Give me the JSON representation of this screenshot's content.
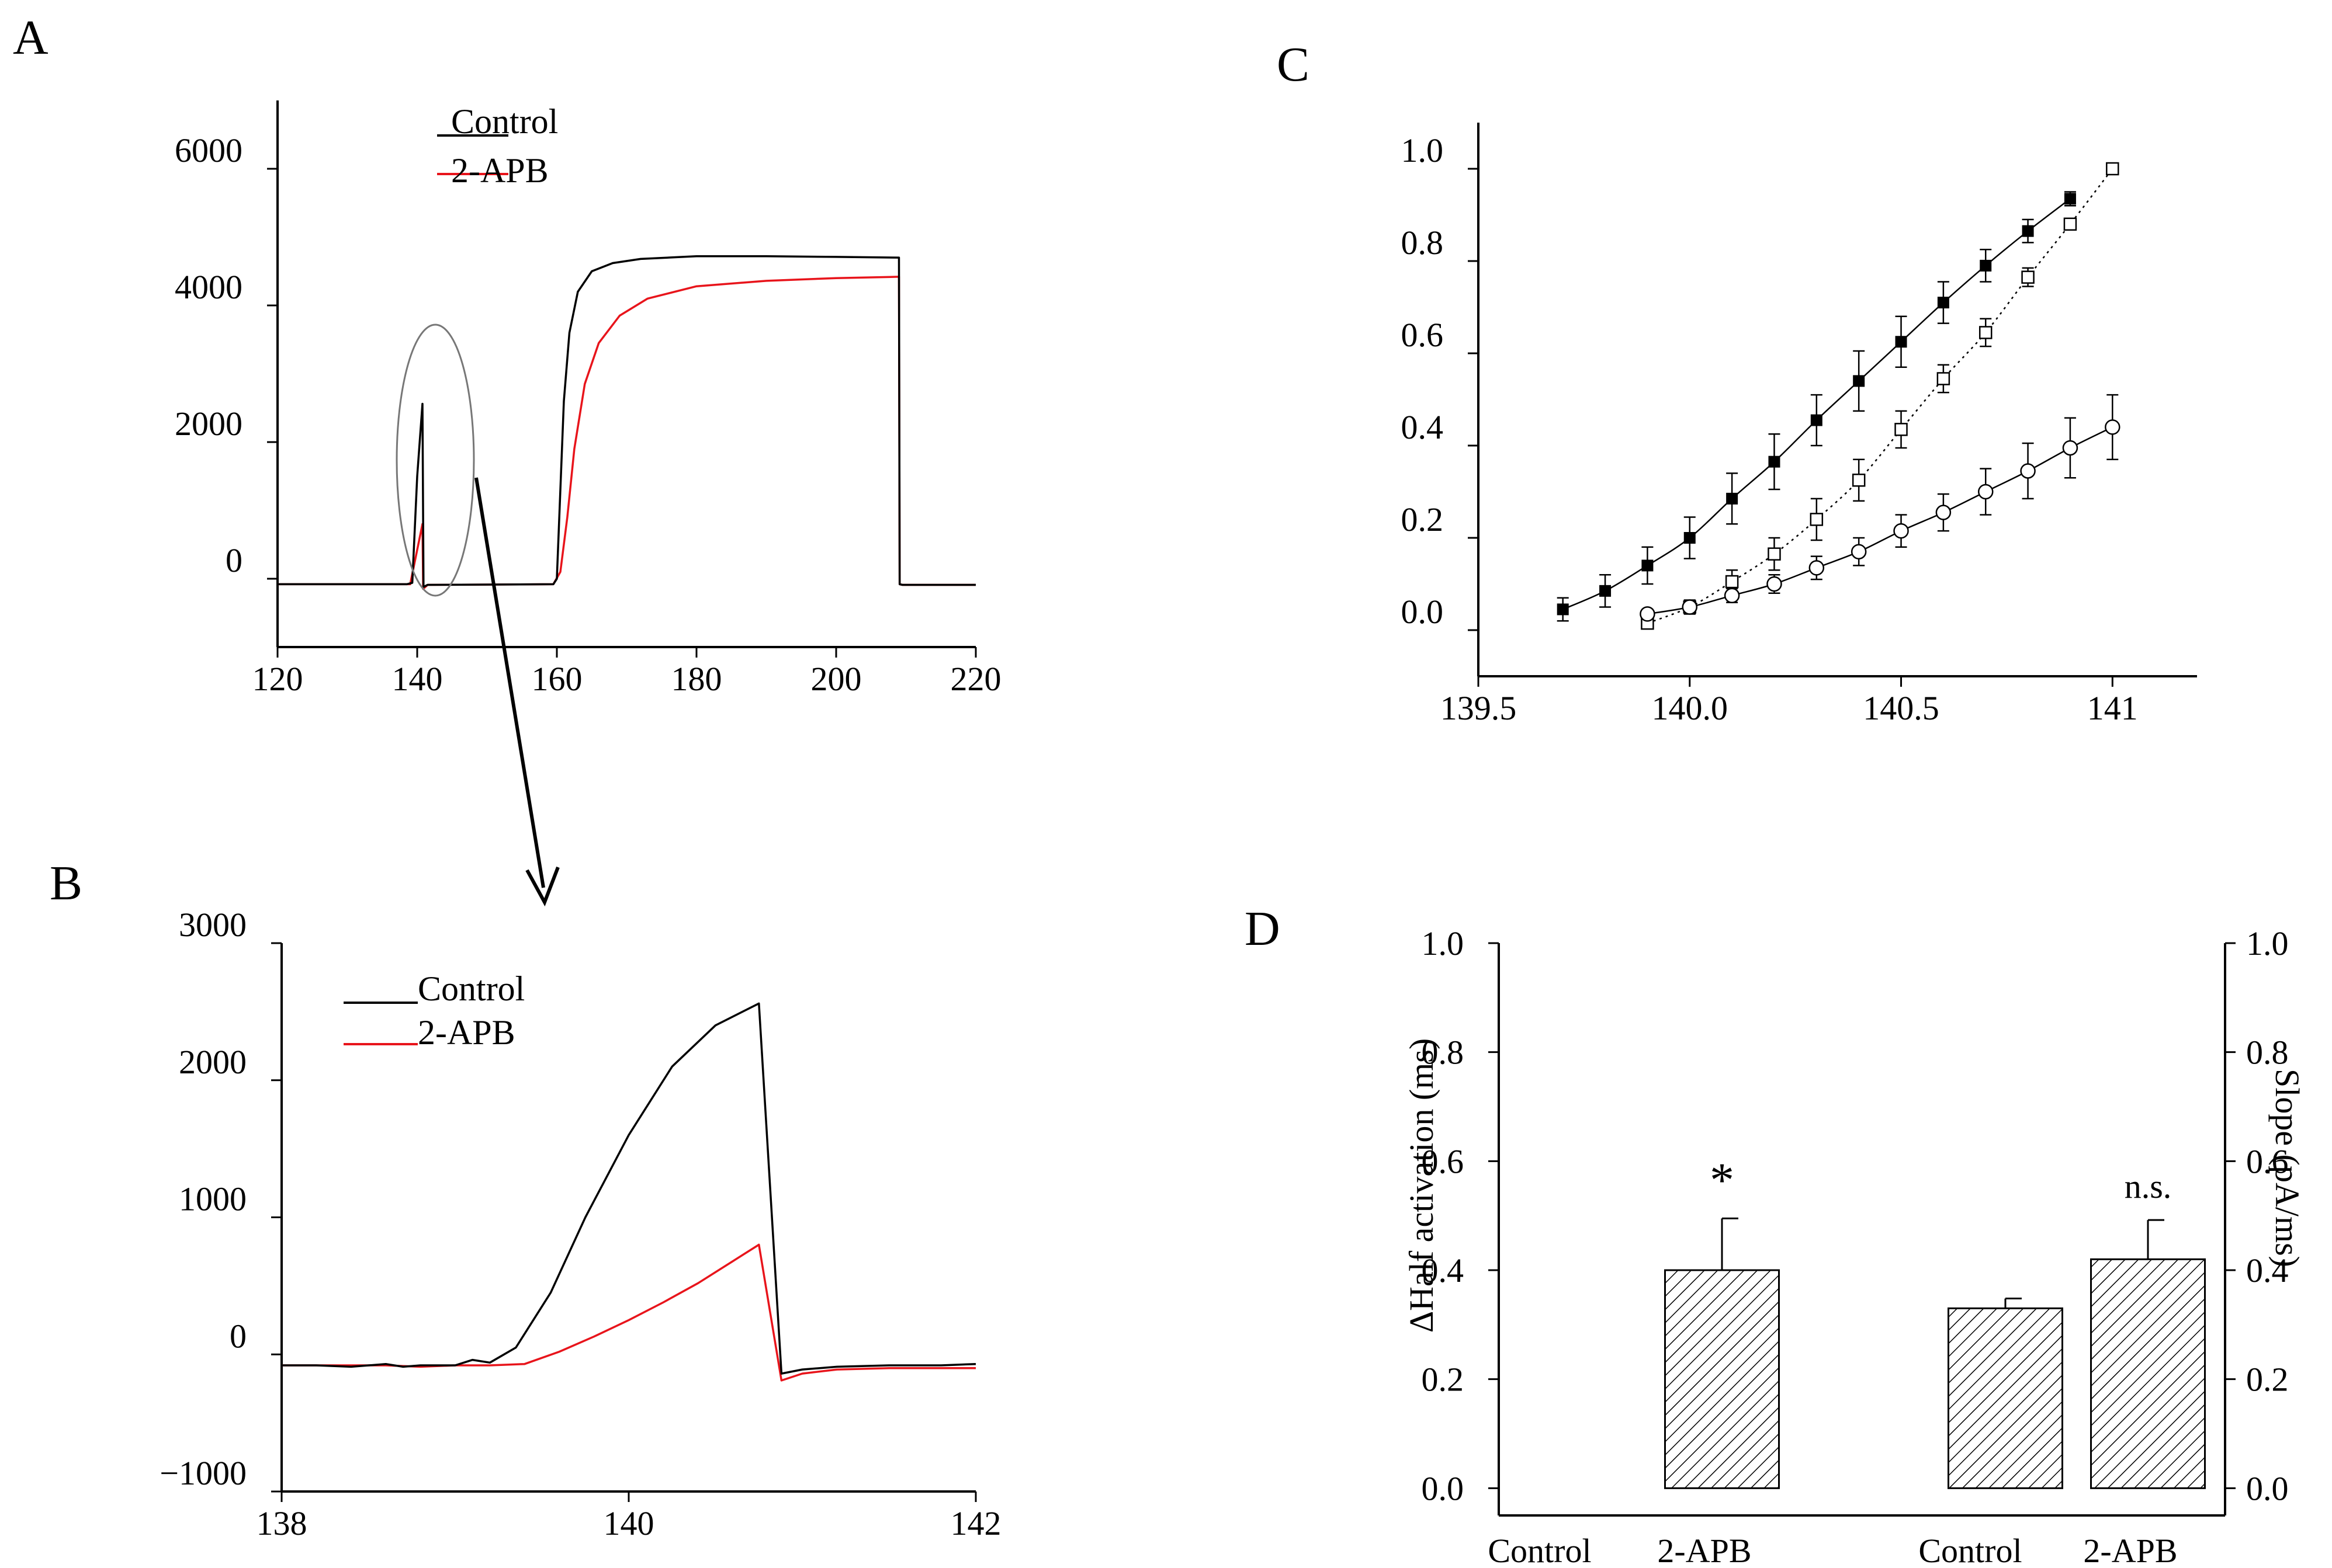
{
  "colors": {
    "control": "#000000",
    "apb": "#e8141b",
    "axis": "#000000",
    "oval": "#777777"
  },
  "panels": {
    "A": {
      "label": "A"
    },
    "B": {
      "label": "B"
    },
    "C": {
      "label": "C"
    },
    "D": {
      "label": "D"
    }
  },
  "chart_data": [
    {
      "panel": "A",
      "type": "line",
      "legend": [
        "Control",
        "2-APB"
      ],
      "xlim": [
        120,
        220
      ],
      "ylim": [
        -1000,
        7000
      ],
      "xticks": [
        "120",
        "140",
        "160",
        "180",
        "200",
        "220"
      ],
      "yticks": [
        "0",
        "2000",
        "4000",
        "6000"
      ],
      "xtick_values": [
        120,
        140,
        160,
        180,
        200,
        220
      ],
      "ytick_values": [
        0,
        2000,
        4000,
        6000
      ],
      "series": [
        {
          "name": "Control",
          "x": [
            120,
            138.5,
            139.3,
            140.0,
            140.75,
            140.9,
            141.5,
            159.5,
            160,
            160.5,
            161,
            161.8,
            163,
            165,
            168,
            172,
            180,
            190,
            200,
            209,
            209.1,
            209.5,
            220
          ],
          "y": [
            -80,
            -80,
            -60,
            1500,
            2560,
            -120,
            -90,
            -80,
            0,
            1300,
            2600,
            3600,
            4200,
            4500,
            4620,
            4680,
            4720,
            4720,
            4710,
            4700,
            -80,
            -90,
            -90
          ]
        },
        {
          "name": "2-APB",
          "x": [
            120,
            139,
            140.75,
            140.85,
            141.5,
            159.5,
            160.5,
            161.5,
            162.5,
            164,
            166,
            169,
            173,
            180,
            190,
            200,
            209,
            209.1,
            209.5,
            220
          ],
          "y": [
            -80,
            -80,
            800,
            -150,
            -90,
            -80,
            100,
            900,
            1900,
            2850,
            3450,
            3850,
            4100,
            4280,
            4360,
            4400,
            4420,
            -80,
            -90,
            -90
          ]
        }
      ]
    },
    {
      "panel": "B",
      "type": "line",
      "legend": [
        "Control",
        "2-APB"
      ],
      "xlim": [
        138,
        142
      ],
      "ylim": [
        -1000,
        3000
      ],
      "xticks": [
        "138",
        "140",
        "142"
      ],
      "yticks": [
        "−1000",
        "0",
        "1000",
        "2000",
        "3000"
      ],
      "xtick_values": [
        138,
        140,
        142
      ],
      "ytick_values": [
        -1000,
        0,
        1000,
        2000,
        3000
      ],
      "series": [
        {
          "name": "Control",
          "x": [
            138.0,
            138.2,
            138.4,
            138.6,
            138.7,
            138.8,
            139.0,
            139.1,
            139.2,
            139.35,
            139.55,
            139.75,
            140.0,
            140.25,
            140.5,
            140.75,
            140.88,
            141.0,
            141.2,
            141.5,
            141.8,
            142.0
          ],
          "y": [
            -80,
            -80,
            -90,
            -70,
            -90,
            -80,
            -80,
            -40,
            -60,
            50,
            450,
            1000,
            1600,
            2100,
            2400,
            2560,
            -140,
            -110,
            -90,
            -80,
            -80,
            -70
          ]
        },
        {
          "name": "2-APB",
          "x": [
            138.0,
            138.3,
            138.6,
            138.8,
            139.0,
            139.2,
            139.4,
            139.6,
            139.8,
            140.0,
            140.2,
            140.4,
            140.6,
            140.75,
            140.88,
            141.0,
            141.2,
            141.5,
            141.8,
            142.0
          ],
          "y": [
            -80,
            -80,
            -80,
            -90,
            -80,
            -80,
            -70,
            20,
            130,
            250,
            380,
            520,
            680,
            800,
            -190,
            -140,
            -110,
            -100,
            -100,
            -100
          ]
        }
      ]
    },
    {
      "panel": "C",
      "type": "scatter",
      "xlim": [
        139.5,
        141.2
      ],
      "ylim": [
        -0.1,
        1.1
      ],
      "xticks": [
        "139.5",
        "140.0",
        "140.5",
        "141"
      ],
      "yticks": [
        "0.0",
        "0.2",
        "0.4",
        "0.6",
        "0.8",
        "1.0"
      ],
      "xtick_values": [
        139.5,
        140.0,
        140.5,
        141.0
      ],
      "ytick_values": [
        0.0,
        0.2,
        0.4,
        0.6,
        0.8,
        1.0
      ],
      "series": [
        {
          "name": "filled squares",
          "marker": "filled-square",
          "fit": "solid",
          "x": [
            139.7,
            139.8,
            139.9,
            140.0,
            140.1,
            140.2,
            140.3,
            140.4,
            140.5,
            140.6,
            140.7,
            140.8,
            140.9
          ],
          "y": [
            0.045,
            0.085,
            0.14,
            0.2,
            0.285,
            0.365,
            0.455,
            0.54,
            0.625,
            0.71,
            0.79,
            0.865,
            0.935
          ],
          "err": [
            0.025,
            0.035,
            0.04,
            0.045,
            0.055,
            0.06,
            0.055,
            0.065,
            0.055,
            0.045,
            0.035,
            0.025,
            0.015
          ]
        },
        {
          "name": "open squares",
          "marker": "open-square",
          "fit": "dotted",
          "x": [
            139.9,
            140.0,
            140.1,
            140.2,
            140.3,
            140.4,
            140.5,
            140.6,
            140.7,
            140.8,
            140.9,
            141.0
          ],
          "y": [
            0.015,
            0.05,
            0.105,
            0.165,
            0.24,
            0.325,
            0.435,
            0.545,
            0.645,
            0.765,
            0.88,
            1.0
          ],
          "err": [
            0.01,
            0.015,
            0.025,
            0.035,
            0.045,
            0.045,
            0.04,
            0.03,
            0.03,
            0.02,
            0.01,
            0.005
          ]
        },
        {
          "name": "open circles",
          "marker": "open-circle",
          "fit": "solid",
          "x": [
            139.9,
            140.0,
            140.1,
            140.2,
            140.3,
            140.4,
            140.5,
            140.6,
            140.7,
            140.8,
            140.9,
            141.0
          ],
          "y": [
            0.035,
            0.05,
            0.075,
            0.1,
            0.135,
            0.17,
            0.215,
            0.255,
            0.3,
            0.345,
            0.395,
            0.44
          ],
          "err": [
            0.01,
            0.015,
            0.015,
            0.02,
            0.025,
            0.03,
            0.035,
            0.04,
            0.05,
            0.06,
            0.065,
            0.07
          ]
        }
      ]
    },
    {
      "panel": "D",
      "type": "bar",
      "categories": [
        "Control",
        "2-APB",
        "Control",
        "2-APB"
      ],
      "values": [
        0.0,
        0.4,
        0.33,
        0.42
      ],
      "errors": [
        0.0,
        0.095,
        0.018,
        0.072
      ],
      "annotations": [
        "",
        "*",
        "",
        "n.s."
      ],
      "ylabel": "ΔHalf activation (ms)",
      "ylabel_right": "Slope (pA/ms)",
      "ylim": [
        -0.05,
        1.0
      ],
      "yticks": [
        "0.0",
        "0.2",
        "0.4",
        "0.6",
        "0.8",
        "1.0"
      ],
      "ytick_values": [
        0.0,
        0.2,
        0.4,
        0.6,
        0.8,
        1.0
      ],
      "yticks_right": [
        "0.0",
        "0.2",
        "0.4",
        "0.6",
        "0.8",
        "1.0"
      ]
    }
  ]
}
